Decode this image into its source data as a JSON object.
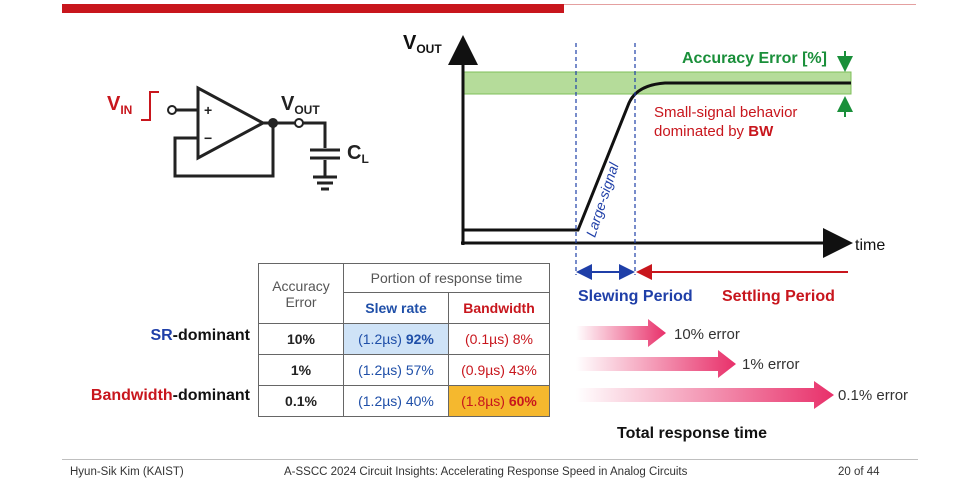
{
  "footer": {
    "author": "Hyun-Sik Kim (KAIST)",
    "title": "A-SSCC 2024 Circuit Insights: Accelerating Response Speed in Analog Circuits",
    "page": "20 of 44"
  },
  "circuit": {
    "vin": "V",
    "vin_sub": "IN",
    "vout": "V",
    "vout_sub": "OUT",
    "cl": "C",
    "cl_sub": "L",
    "plus": "+",
    "minus": "−"
  },
  "graph": {
    "y_axis": "V",
    "y_axis_sub": "OUT",
    "x_axis": "time",
    "accuracy_error": "Accuracy Error [%]",
    "small_signal_line1": "Small-signal behavior",
    "small_signal_line2": "dominated by ",
    "small_signal_bw": "BW",
    "large_signal": "Large-signal",
    "slewing_period": "Slewing Period",
    "settling_period": "Settling Period"
  },
  "table": {
    "header_accuracy_line1": "Accuracy",
    "header_accuracy_line2": "Error",
    "header_portion": "Portion of response time",
    "header_slew": "Slew rate",
    "header_bw": "Bandwidth",
    "rows": [
      {
        "error": "10%",
        "slew_time": "(1.2µs)",
        "slew_pct": "92%",
        "bw_time": "(0.1µs)",
        "bw_pct": "8%"
      },
      {
        "error": "1%",
        "slew_time": "(1.2µs)",
        "slew_pct": "57%",
        "bw_time": "(0.9µs)",
        "bw_pct": "43%"
      },
      {
        "error": "0.1%",
        "slew_time": "(1.2µs)",
        "slew_pct": "40%",
        "bw_time": "(1.8µs)",
        "bw_pct": "60%"
      }
    ]
  },
  "row_labels": {
    "sr_prefix": "SR",
    "sr_suffix": "-dominant",
    "bw_prefix": "Bandwidth",
    "bw_suffix": "-dominant"
  },
  "arrows": {
    "a10": "10% error",
    "a1": "1% error",
    "a01": "0.1% error",
    "total": "Total response time"
  },
  "colors": {
    "red": "#c8161d",
    "blue": "#1f3fa8",
    "green": "#1a8f3a",
    "band": "#b5dc9a",
    "highlight_blue": "#cfe3f7",
    "highlight_orange": "#f5b82e"
  }
}
